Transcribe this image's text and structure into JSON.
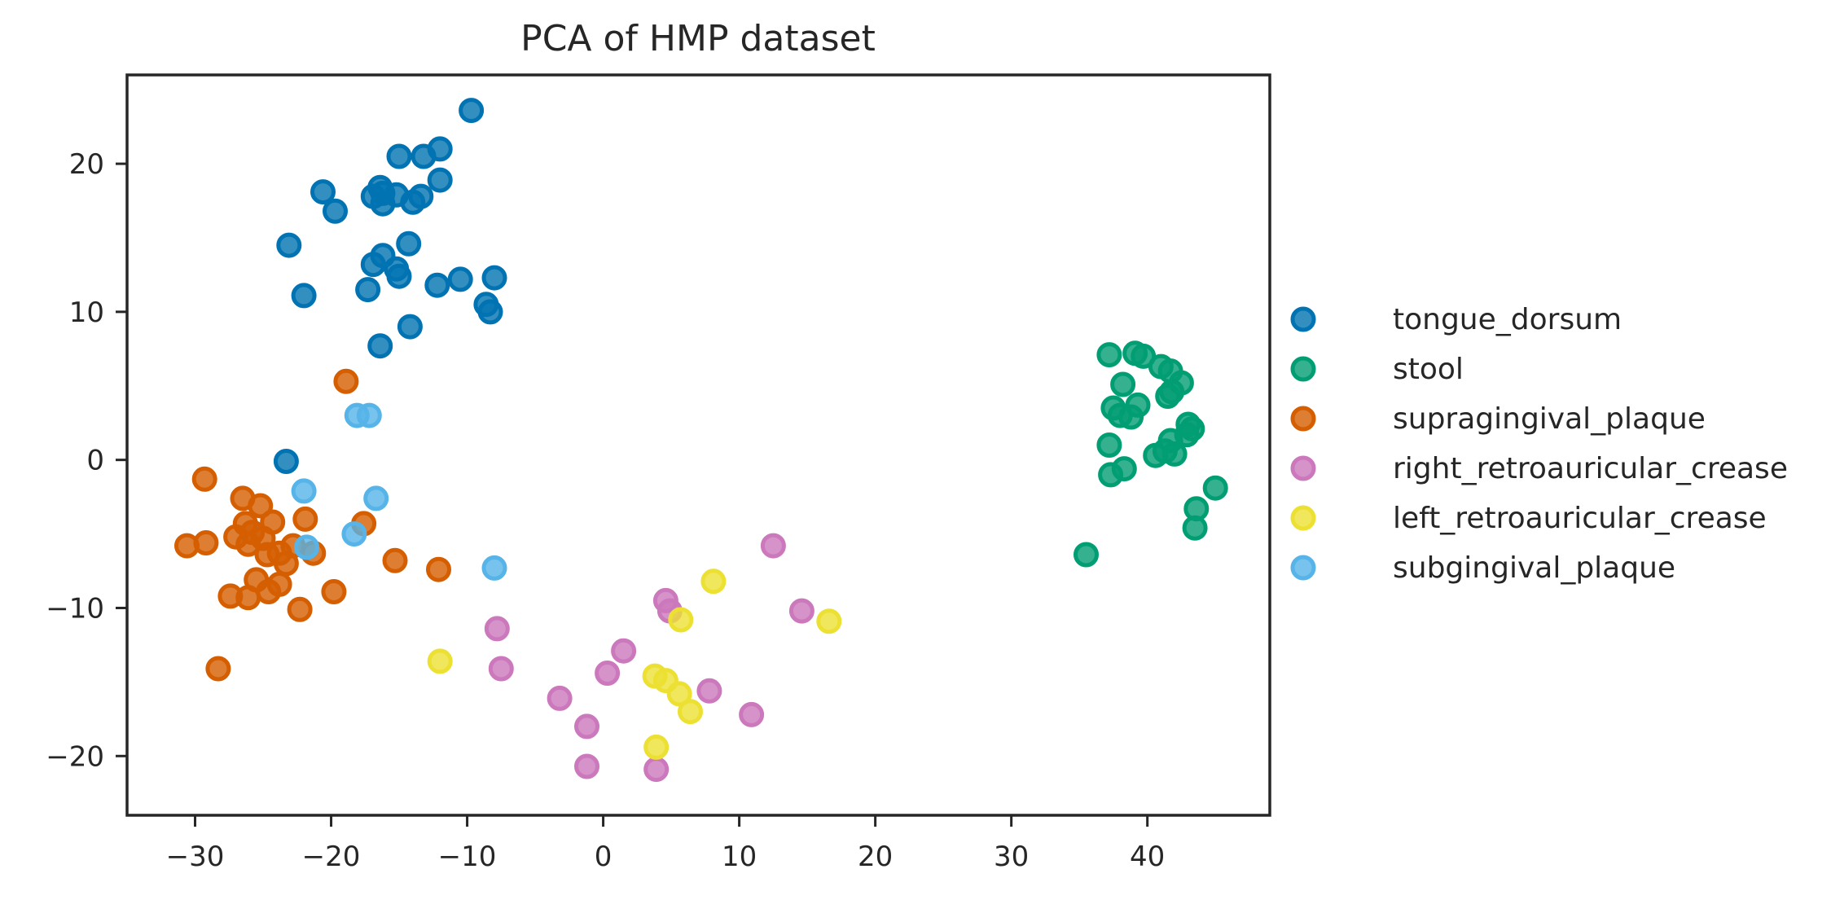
{
  "chart_data": {
    "type": "scatter",
    "title": "PCA of HMP dataset",
    "xlabel": "",
    "ylabel": "",
    "xlim": [
      -35,
      49
    ],
    "ylim": [
      -24,
      26
    ],
    "xticks": [
      -30,
      -20,
      -10,
      0,
      10,
      20,
      30,
      40
    ],
    "yticks": [
      -20,
      -10,
      0,
      10,
      20
    ],
    "xtick_labels": [
      "−30",
      "−20",
      "−10",
      "0",
      "10",
      "20",
      "30",
      "40"
    ],
    "ytick_labels": [
      "−20",
      "−10",
      "0",
      "10",
      "20"
    ],
    "grid": false,
    "legend_placement": "outside right",
    "series": [
      {
        "name": "tongue_dorsum",
        "color": "#0173b2",
        "points": [
          [
            -9.7,
            23.6
          ],
          [
            -12,
            21
          ],
          [
            -13.2,
            20.5
          ],
          [
            -15,
            20.5
          ],
          [
            -12,
            18.9
          ],
          [
            -16.4,
            18.4
          ],
          [
            -16.2,
            18
          ],
          [
            -15.2,
            17.9
          ],
          [
            -16.9,
            17.8
          ],
          [
            -16.2,
            17.3
          ],
          [
            -13.4,
            17.8
          ],
          [
            -14,
            17.4
          ],
          [
            -20.6,
            18.1
          ],
          [
            -19.7,
            16.8
          ],
          [
            -23.1,
            14.5
          ],
          [
            -14.3,
            14.6
          ],
          [
            -16.2,
            13.8
          ],
          [
            -16.9,
            13.2
          ],
          [
            -15.2,
            12.9
          ],
          [
            -15,
            12.4
          ],
          [
            -12.2,
            11.8
          ],
          [
            -10.5,
            12.2
          ],
          [
            -8,
            12.3
          ],
          [
            -17.3,
            11.5
          ],
          [
            -22,
            11.1
          ],
          [
            -8.6,
            10.5
          ],
          [
            -8.3,
            10
          ],
          [
            -14.2,
            9
          ],
          [
            -16.4,
            7.7
          ],
          [
            -23.3,
            -0.1
          ]
        ]
      },
      {
        "name": "stool",
        "color": "#029e73",
        "points": [
          [
            37.2,
            7.1
          ],
          [
            39.1,
            7.2
          ],
          [
            39.7,
            7
          ],
          [
            41,
            6.3
          ],
          [
            41.7,
            6
          ],
          [
            42.5,
            5.2
          ],
          [
            38.2,
            5.1
          ],
          [
            41.8,
            4.6
          ],
          [
            41.5,
            4.3
          ],
          [
            37.5,
            3.5
          ],
          [
            39.3,
            3.7
          ],
          [
            38,
            3
          ],
          [
            38.8,
            2.9
          ],
          [
            43,
            2.4
          ],
          [
            43.3,
            2.1
          ],
          [
            42.9,
            1.7
          ],
          [
            41.7,
            1.3
          ],
          [
            37.2,
            1
          ],
          [
            41.3,
            0.6
          ],
          [
            40.6,
            0.3
          ],
          [
            42,
            0.4
          ],
          [
            38.3,
            -0.6
          ],
          [
            37.3,
            -1
          ],
          [
            45,
            -1.9
          ],
          [
            43.6,
            -3.3
          ],
          [
            43.5,
            -4.6
          ],
          [
            35.5,
            -6.4
          ]
        ]
      },
      {
        "name": "supragingival_plaque",
        "color": "#d55e00",
        "points": [
          [
            -18.9,
            5.3
          ],
          [
            -29.3,
            -1.3
          ],
          [
            -26.5,
            -2.6
          ],
          [
            -25.2,
            -3.1
          ],
          [
            -21.9,
            -4
          ],
          [
            -24.3,
            -4.2
          ],
          [
            -26.3,
            -4.3
          ],
          [
            -25.8,
            -4.9
          ],
          [
            -27,
            -5.2
          ],
          [
            -25,
            -5.3
          ],
          [
            -26.1,
            -5.7
          ],
          [
            -29.2,
            -5.6
          ],
          [
            -30.6,
            -5.8
          ],
          [
            -22.8,
            -5.8
          ],
          [
            -21.3,
            -6.3
          ],
          [
            -24.7,
            -6.4
          ],
          [
            -23.8,
            -6.3
          ],
          [
            -15.3,
            -6.8
          ],
          [
            -23.3,
            -7
          ],
          [
            -12.1,
            -7.4
          ],
          [
            -25.5,
            -8.1
          ],
          [
            -23.8,
            -8.4
          ],
          [
            -24.6,
            -8.9
          ],
          [
            -19.8,
            -8.9
          ],
          [
            -27.4,
            -9.2
          ],
          [
            -26.1,
            -9.3
          ],
          [
            -22.3,
            -10.1
          ],
          [
            -28.3,
            -14.1
          ],
          [
            -17.6,
            -4.3
          ]
        ]
      },
      {
        "name": "right_retroauricular_crease",
        "color": "#cc78bc",
        "points": [
          [
            12.5,
            -5.8
          ],
          [
            4.6,
            -9.5
          ],
          [
            4.9,
            -10.2
          ],
          [
            14.6,
            -10.2
          ],
          [
            -7.8,
            -11.4
          ],
          [
            1.5,
            -12.9
          ],
          [
            -7.5,
            -14.1
          ],
          [
            0.3,
            -14.4
          ],
          [
            7.8,
            -15.6
          ],
          [
            -3.2,
            -16.1
          ],
          [
            10.9,
            -17.2
          ],
          [
            -1.2,
            -18
          ],
          [
            -1.2,
            -20.7
          ],
          [
            3.9,
            -20.9
          ]
        ]
      },
      {
        "name": "left_retroauricular_crease",
        "color": "#ece133",
        "points": [
          [
            8.1,
            -8.2
          ],
          [
            5.7,
            -10.8
          ],
          [
            16.6,
            -10.9
          ],
          [
            -12,
            -13.6
          ],
          [
            3.8,
            -14.6
          ],
          [
            4.6,
            -14.9
          ],
          [
            5.6,
            -15.8
          ],
          [
            6.4,
            -17
          ],
          [
            3.9,
            -19.4
          ]
        ]
      },
      {
        "name": "subgingival_plaque",
        "color": "#56b4e9",
        "points": [
          [
            -18.1,
            3
          ],
          [
            -17.2,
            3
          ],
          [
            -22,
            -2.1
          ],
          [
            -16.7,
            -2.6
          ],
          [
            -18.3,
            -5
          ],
          [
            -21.8,
            -5.9
          ],
          [
            -8,
            -7.3
          ]
        ]
      }
    ]
  }
}
